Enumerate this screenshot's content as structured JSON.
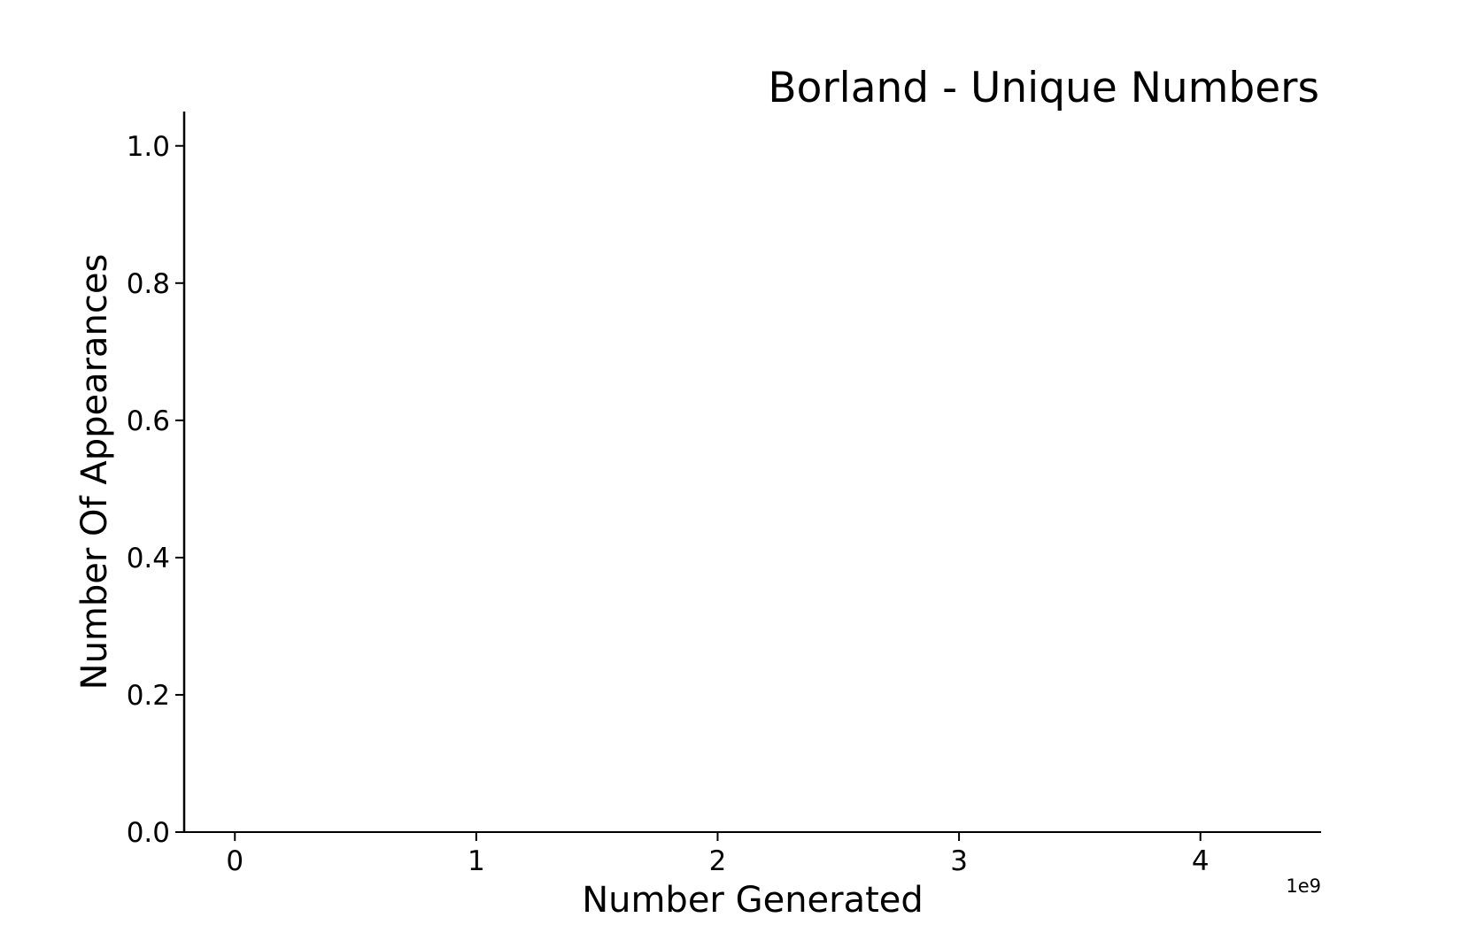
{
  "chart_data": {
    "type": "scatter",
    "title": "Borland - Unique Numbers",
    "xlabel": "Number Generated",
    "ylabel": "Number Of Appearances",
    "x_offset_label": "1e9",
    "x_tick_labels": [
      "0",
      "1",
      "2",
      "3",
      "4"
    ],
    "x_ticks": [
      0,
      1,
      2,
      3,
      4
    ],
    "y_tick_labels": [
      "0.0",
      "0.2",
      "0.4",
      "0.6",
      "0.8",
      "1.0"
    ],
    "y_ticks": [
      0.0,
      0.2,
      0.4,
      0.6,
      0.8,
      1.0
    ],
    "xlim": [
      -0.21,
      4.5
    ],
    "ylim": [
      0.0,
      1.05
    ],
    "grid": false,
    "series": [
      {
        "x": [],
        "y": []
      }
    ],
    "colors": {
      "axis": "#000000",
      "background": "#ffffff"
    }
  }
}
